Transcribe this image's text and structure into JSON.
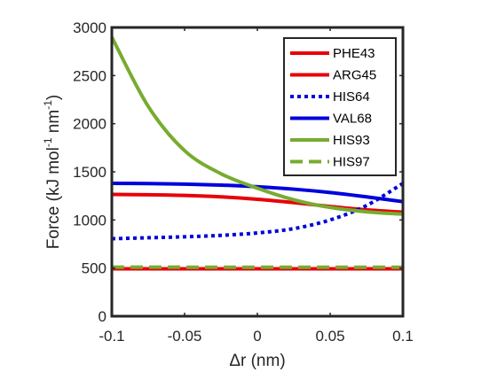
{
  "chart_data": {
    "type": "line",
    "title": "",
    "xlabel": "Δr (nm)",
    "ylabel_parts": [
      "Force (kJ mol",
      "-1",
      " nm",
      "-1",
      ")"
    ],
    "xlim": [
      -0.1,
      0.1
    ],
    "ylim": [
      0,
      3000
    ],
    "x_ticks": [
      -0.1,
      -0.05,
      0,
      0.05,
      0.1
    ],
    "x_tick_labels": [
      "-0.1",
      "-0.05",
      "0",
      "0.05",
      "0.1"
    ],
    "y_ticks": [
      0,
      500,
      1000,
      1500,
      2000,
      2500,
      3000
    ],
    "y_tick_labels": [
      "0",
      "500",
      "1000",
      "1500",
      "2000",
      "2500",
      "3000"
    ],
    "grid": false,
    "legend_position": "top-right",
    "x": [
      -0.1,
      -0.075,
      -0.05,
      -0.025,
      0,
      0.025,
      0.05,
      0.075,
      0.1
    ],
    "series": [
      {
        "name": "PHE43",
        "color": "#e8000b",
        "dash": "solid",
        "values": [
          492,
          492,
          492,
          492,
          492,
          492,
          492,
          492,
          492
        ]
      },
      {
        "name": "ARG45",
        "color": "#e8000b",
        "dash": "solid",
        "values": [
          1265,
          1262,
          1255,
          1240,
          1215,
          1180,
          1140,
          1105,
          1080
        ]
      },
      {
        "name": "HIS64",
        "color": "#0000dd",
        "dash": "dotted",
        "values": [
          805,
          815,
          825,
          840,
          865,
          910,
          1000,
          1150,
          1380
        ]
      },
      {
        "name": "VAL68",
        "color": "#0000dd",
        "dash": "solid",
        "values": [
          1380,
          1378,
          1372,
          1362,
          1345,
          1320,
          1285,
          1240,
          1190
        ]
      },
      {
        "name": "HIS93",
        "color": "#77ac30",
        "dash": "solid",
        "values": [
          2900,
          2180,
          1720,
          1480,
          1330,
          1210,
          1130,
          1085,
          1060
        ]
      },
      {
        "name": "HIS97",
        "color": "#77ac30",
        "dash": "dashed",
        "values": [
          510,
          510,
          509,
          509,
          509,
          509,
          509,
          509,
          509
        ]
      }
    ]
  }
}
